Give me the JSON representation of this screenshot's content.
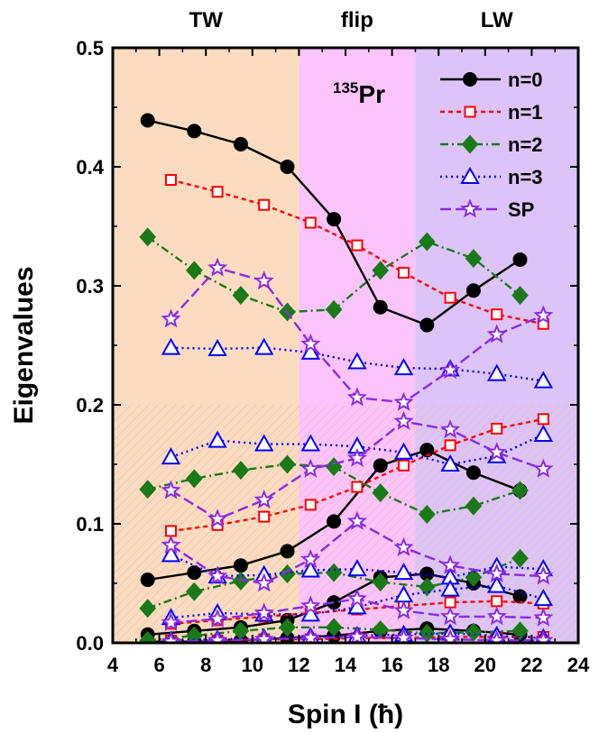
{
  "chart_data": {
    "type": "line",
    "xlabel": "Spin I (ħ)",
    "ylabel": "Eigenvalues",
    "xlim": [
      4,
      24
    ],
    "ylim": [
      0,
      0.5
    ],
    "xticks": [
      4,
      6,
      8,
      10,
      12,
      14,
      16,
      18,
      20,
      22,
      24
    ],
    "yticks": [
      0.0,
      0.1,
      0.2,
      0.3,
      0.4,
      0.5
    ],
    "annotation": {
      "sup": "135",
      "main": "Pr"
    },
    "legend_position": "top-right",
    "regions": [
      {
        "label": "TW",
        "x_range": [
          4,
          12
        ],
        "color": "#fcdcc0"
      },
      {
        "label": "flip",
        "x_range": [
          12,
          17
        ],
        "color": "#fcc4fc"
      },
      {
        "label": "LW",
        "x_range": [
          17,
          24
        ],
        "color": "#dcc4f8"
      }
    ],
    "hatch_below_y": 0.2,
    "series": [
      {
        "name": "n=0",
        "key": "n0",
        "color": "#000000",
        "dash": "",
        "marker": "circle",
        "filled": true,
        "curves": [
          {
            "x": [
              5.5,
              7.5,
              9.5,
              11.5,
              13.5,
              15.5,
              17.5,
              19.5,
              21.5
            ],
            "y": [
              0.439,
              0.43,
              0.419,
              0.4,
              0.356,
              0.282,
              0.267,
              0.296,
              0.322
            ]
          },
          {
            "x": [
              5.5,
              7.5,
              9.5,
              11.5,
              13.5,
              15.5,
              17.5,
              19.5,
              21.5
            ],
            "y": [
              0.053,
              0.059,
              0.065,
              0.077,
              0.102,
              0.149,
              0.162,
              0.143,
              0.128
            ]
          },
          {
            "x": [
              5.5,
              7.5,
              9.5,
              11.5,
              13.5,
              15.5,
              17.5,
              19.5,
              21.5
            ],
            "y": [
              0.007,
              0.01,
              0.013,
              0.019,
              0.034,
              0.055,
              0.058,
              0.05,
              0.039
            ]
          },
          {
            "x": [
              5.5,
              7.5,
              9.5,
              11.5,
              13.5,
              15.5,
              17.5,
              19.5,
              21.5
            ],
            "y": [
              0.001,
              0.001,
              0.002,
              0.004,
              0.006,
              0.01,
              0.012,
              0.01,
              0.007
            ]
          }
        ]
      },
      {
        "name": "n=1",
        "key": "n1",
        "color": "#ff0000",
        "dash": "5,4",
        "marker": "square",
        "filled": false,
        "curves": [
          {
            "x": [
              6.5,
              8.5,
              10.5,
              12.5,
              14.5,
              16.5,
              18.5,
              20.5,
              22.5
            ],
            "y": [
              0.389,
              0.379,
              0.368,
              0.353,
              0.334,
              0.311,
              0.29,
              0.276,
              0.268
            ]
          },
          {
            "x": [
              6.5,
              8.5,
              10.5,
              12.5,
              14.5,
              16.5,
              18.5,
              20.5,
              22.5
            ],
            "y": [
              0.094,
              0.099,
              0.106,
              0.116,
              0.131,
              0.149,
              0.166,
              0.18,
              0.188
            ]
          },
          {
            "x": [
              6.5,
              8.5,
              10.5,
              12.5,
              14.5,
              16.5,
              18.5,
              20.5,
              22.5
            ],
            "y": [
              0.016,
              0.019,
              0.022,
              0.025,
              0.028,
              0.031,
              0.034,
              0.035,
              0.033
            ]
          },
          {
            "x": [
              6.5,
              8.5,
              10.5,
              12.5,
              14.5,
              16.5,
              18.5,
              20.5,
              22.5
            ],
            "y": [
              0.002,
              0.002,
              0.003,
              0.003,
              0.004,
              0.004,
              0.005,
              0.005,
              0.005
            ]
          }
        ]
      },
      {
        "name": "n=2",
        "key": "n2",
        "color": "#1a7a1a",
        "dash": "9,4,2,4",
        "marker": "diamond",
        "filled": true,
        "curves": [
          {
            "x": [
              5.5,
              7.5,
              9.5,
              11.5,
              13.5,
              15.5,
              17.5,
              19.5,
              21.5
            ],
            "y": [
              0.341,
              0.313,
              0.292,
              0.278,
              0.28,
              0.313,
              0.337,
              0.323,
              0.292
            ]
          },
          {
            "x": [
              5.5,
              7.5,
              9.5,
              11.5,
              13.5,
              15.5,
              17.5,
              19.5,
              21.5
            ],
            "y": [
              0.129,
              0.138,
              0.145,
              0.15,
              0.148,
              0.126,
              0.108,
              0.115,
              0.128
            ]
          },
          {
            "x": [
              5.5,
              7.5,
              9.5,
              11.5,
              13.5,
              15.5,
              17.5,
              19.5,
              21.5
            ],
            "y": [
              0.029,
              0.043,
              0.052,
              0.058,
              0.059,
              0.051,
              0.047,
              0.055,
              0.071
            ]
          },
          {
            "x": [
              5.5,
              7.5,
              9.5,
              11.5,
              13.5,
              15.5,
              17.5,
              19.5,
              21.5
            ],
            "y": [
              0.002,
              0.006,
              0.01,
              0.013,
              0.013,
              0.011,
              0.008,
              0.009,
              0.01
            ]
          }
        ]
      },
      {
        "name": "n=3",
        "key": "n3",
        "color": "#0000ff",
        "dash": "2,4",
        "marker": "triangle",
        "filled": false,
        "curves": [
          {
            "x": [
              6.5,
              8.5,
              10.5,
              12.5,
              14.5,
              16.5,
              18.5,
              20.5,
              22.5
            ],
            "y": [
              0.248,
              0.247,
              0.248,
              0.244,
              0.236,
              0.231,
              0.23,
              0.226,
              0.22
            ]
          },
          {
            "x": [
              6.5,
              8.5,
              10.5,
              12.5,
              14.5,
              16.5,
              18.5,
              20.5,
              22.5
            ],
            "y": [
              0.156,
              0.17,
              0.167,
              0.167,
              0.165,
              0.16,
              0.15,
              0.157,
              0.175
            ]
          },
          {
            "x": [
              6.5,
              8.5,
              10.5,
              12.5,
              14.5,
              16.5,
              18.5,
              20.5,
              22.5
            ],
            "y": [
              0.074,
              0.056,
              0.057,
              0.061,
              0.062,
              0.059,
              0.055,
              0.064,
              0.062
            ]
          },
          {
            "x": [
              6.5,
              8.5,
              10.5,
              12.5,
              14.5,
              16.5,
              18.5,
              20.5,
              22.5
            ],
            "y": [
              0.021,
              0.025,
              0.024,
              0.024,
              0.03,
              0.04,
              0.045,
              0.048,
              0.037
            ]
          },
          {
            "x": [
              6.5,
              8.5,
              10.5,
              12.5,
              14.5,
              16.5,
              18.5,
              20.5,
              22.5
            ],
            "y": [
              0.002,
              0.003,
              0.004,
              0.005,
              0.006,
              0.007,
              0.008,
              0.006,
              0.004
            ]
          }
        ]
      },
      {
        "name": "SP",
        "key": "sp",
        "color": "#8a2be2",
        "dash": "12,5",
        "marker": "star",
        "filled": false,
        "curves": [
          {
            "x": [
              6.5,
              8.5,
              10.5,
              12.5,
              14.5,
              16.5,
              18.5,
              20.5,
              22.5
            ],
            "y": [
              0.272,
              0.315,
              0.304,
              0.251,
              0.206,
              0.202,
              0.229,
              0.259,
              0.275
            ]
          },
          {
            "x": [
              6.5,
              8.5,
              10.5,
              12.5,
              14.5,
              16.5,
              18.5,
              20.5,
              22.5
            ],
            "y": [
              0.128,
              0.104,
              0.12,
              0.146,
              0.155,
              0.186,
              0.179,
              0.16,
              0.146
            ]
          },
          {
            "x": [
              6.5,
              8.5,
              10.5,
              12.5,
              14.5,
              16.5,
              18.5,
              20.5,
              22.5
            ],
            "y": [
              0.082,
              0.056,
              0.05,
              0.07,
              0.102,
              0.08,
              0.065,
              0.058,
              0.056
            ]
          },
          {
            "x": [
              6.5,
              8.5,
              10.5,
              12.5,
              14.5,
              16.5,
              18.5,
              20.5,
              22.5
            ],
            "y": [
              0.017,
              0.02,
              0.025,
              0.031,
              0.037,
              0.027,
              0.022,
              0.022,
              0.021
            ]
          },
          {
            "x": [
              6.5,
              8.5,
              10.5,
              12.5,
              14.5,
              16.5,
              18.5,
              20.5,
              22.5
            ],
            "y": [
              0.001,
              0.002,
              0.003,
              0.004,
              0.005,
              0.004,
              0.003,
              0.002,
              0.002
            ]
          }
        ]
      }
    ]
  }
}
